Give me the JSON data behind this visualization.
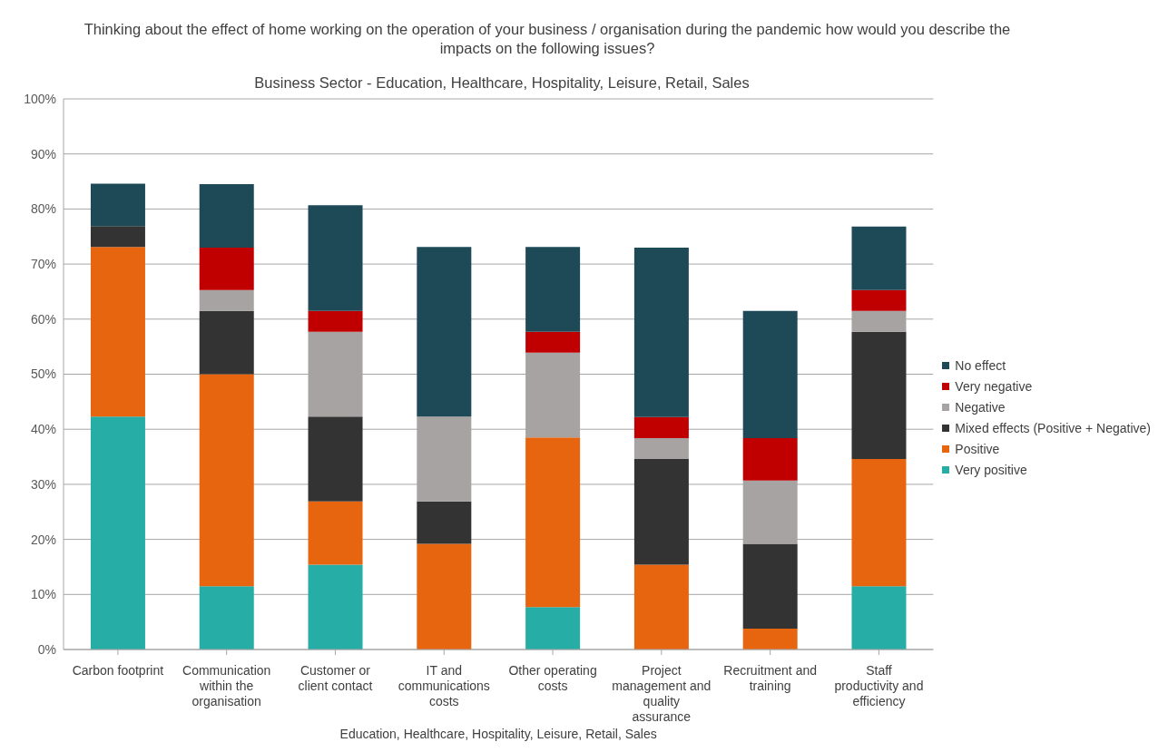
{
  "chart_data": {
    "type": "bar",
    "title": "Thinking about the effect of home working on the operation of your business / organisation during the pandemic how would you describe the impacts on the following issues?",
    "subtitle": "Business Sector - Education, Healthcare, Hospitality, Leisure, Retail, Sales",
    "xlabel": "Education, Healthcare, Hospitality, Leisure, Retail, Sales",
    "categories": [
      "Carbon footprint",
      "Communication within the organisation",
      "Customer or client contact",
      "IT and communications costs",
      "Other operating costs",
      "Project management and quality assurance",
      "Recruitment and training",
      "Staff productivity and efficiency"
    ],
    "stacked": true,
    "grid": "y",
    "legend": "right",
    "ylim": [
      0,
      100
    ],
    "yticks": [
      {
        "value": 0,
        "label": "0%"
      },
      {
        "value": 10,
        "label": "10%"
      },
      {
        "value": 20,
        "label": "20%"
      },
      {
        "value": 30,
        "label": "30%"
      },
      {
        "value": 40,
        "label": "40%"
      },
      {
        "value": 50,
        "label": "50%"
      },
      {
        "value": 60,
        "label": "60%"
      },
      {
        "value": 70,
        "label": "70%"
      },
      {
        "value": 80,
        "label": "80%"
      },
      {
        "value": 90,
        "label": "90%"
      },
      {
        "value": 100,
        "label": "100%"
      }
    ],
    "series": [
      {
        "name": "Very positive",
        "color": "#26ada5",
        "values": [
          42.3,
          11.5,
          15.4,
          0,
          7.7,
          0,
          0,
          11.5
        ]
      },
      {
        "name": "Positive",
        "color": "#e8650f",
        "values": [
          30.8,
          38.5,
          11.5,
          19.2,
          30.8,
          15.4,
          3.8,
          23.1
        ]
      },
      {
        "name": "Mixed effects (Positive + Negative)",
        "color": "#333333",
        "values": [
          3.8,
          11.5,
          15.4,
          7.7,
          0,
          19.2,
          15.4,
          23.1
        ]
      },
      {
        "name": "Negative",
        "color": "#a6a3a2",
        "values": [
          0,
          3.8,
          15.4,
          15.4,
          15.4,
          3.8,
          11.5,
          3.8
        ]
      },
      {
        "name": "Very negative",
        "color": "#c00000",
        "values": [
          0,
          7.7,
          3.8,
          0,
          3.8,
          3.8,
          7.7,
          3.8
        ]
      },
      {
        "name": "No effect",
        "color": "#1e4a57",
        "values": [
          7.7,
          11.5,
          19.2,
          30.8,
          15.4,
          30.8,
          23.1,
          11.5
        ]
      }
    ]
  }
}
